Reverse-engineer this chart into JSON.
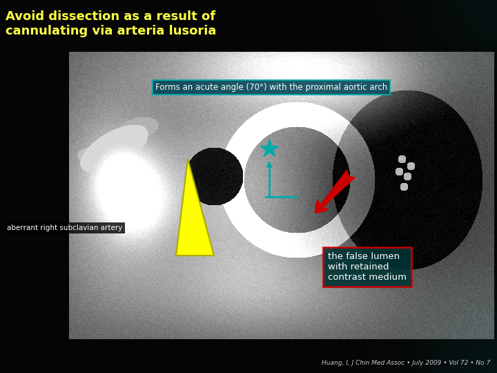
{
  "bg_color": "#000000",
  "title_text": "Avoid dissection as a result of\ncannulating via arteria lusoria",
  "title_color": "#ffff44",
  "title_fontsize": 13,
  "forms_text": "Forms an acute angle (70°) with the proximal aortic arch",
  "forms_text_color": "#ffffff",
  "forms_box_facecolor": "#004455",
  "forms_box_edgecolor": "#00aaaa",
  "aberrant_text": "aberrant right subclavian artery",
  "aberrant_text_color": "#ffffff",
  "aberrant_box_facecolor": "#000000",
  "false_lumen_text": "the false lumen\nwith retained\ncontrast medium",
  "false_lumen_text_color": "#ffffff",
  "false_lumen_box_facecolor": "#003333",
  "false_lumen_border_color": "#cc0000",
  "citation_text": "Huang, I, J Chin Med Assoc • July 2009 • Vol 72 • No 7",
  "citation_color": "#cccccc",
  "teal_color": "#00aaaa",
  "yellow_color": "#ffff00",
  "yellow_edge_color": "#aaaa00",
  "red_color": "#cc0000",
  "white_color": "#ffffff"
}
